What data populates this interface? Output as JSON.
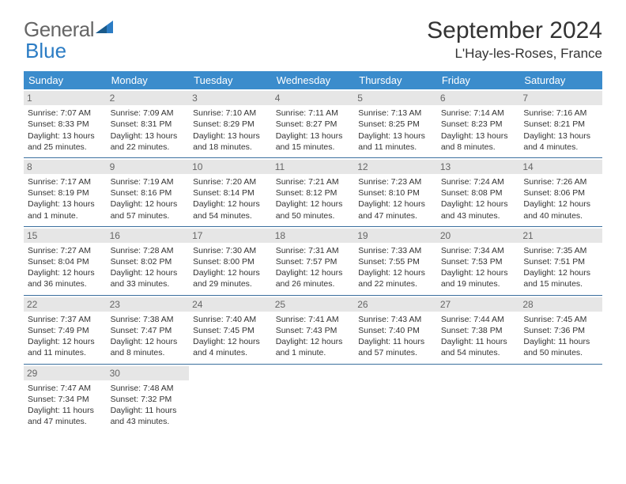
{
  "logo": {
    "text1": "General",
    "text2": "Blue"
  },
  "title": "September 2024",
  "location": "L'Hay-les-Roses, France",
  "header_color": "#3b8ccc",
  "divider_color": "#3b6f9e",
  "daynum_bg": "#e6e6e6",
  "day_headers": [
    "Sunday",
    "Monday",
    "Tuesday",
    "Wednesday",
    "Thursday",
    "Friday",
    "Saturday"
  ],
  "weeks": [
    [
      {
        "n": "1",
        "sr": "7:07 AM",
        "ss": "8:33 PM",
        "dl": "13 hours and 25 minutes."
      },
      {
        "n": "2",
        "sr": "7:09 AM",
        "ss": "8:31 PM",
        "dl": "13 hours and 22 minutes."
      },
      {
        "n": "3",
        "sr": "7:10 AM",
        "ss": "8:29 PM",
        "dl": "13 hours and 18 minutes."
      },
      {
        "n": "4",
        "sr": "7:11 AM",
        "ss": "8:27 PM",
        "dl": "13 hours and 15 minutes."
      },
      {
        "n": "5",
        "sr": "7:13 AM",
        "ss": "8:25 PM",
        "dl": "13 hours and 11 minutes."
      },
      {
        "n": "6",
        "sr": "7:14 AM",
        "ss": "8:23 PM",
        "dl": "13 hours and 8 minutes."
      },
      {
        "n": "7",
        "sr": "7:16 AM",
        "ss": "8:21 PM",
        "dl": "13 hours and 4 minutes."
      }
    ],
    [
      {
        "n": "8",
        "sr": "7:17 AM",
        "ss": "8:19 PM",
        "dl": "13 hours and 1 minute."
      },
      {
        "n": "9",
        "sr": "7:19 AM",
        "ss": "8:16 PM",
        "dl": "12 hours and 57 minutes."
      },
      {
        "n": "10",
        "sr": "7:20 AM",
        "ss": "8:14 PM",
        "dl": "12 hours and 54 minutes."
      },
      {
        "n": "11",
        "sr": "7:21 AM",
        "ss": "8:12 PM",
        "dl": "12 hours and 50 minutes."
      },
      {
        "n": "12",
        "sr": "7:23 AM",
        "ss": "8:10 PM",
        "dl": "12 hours and 47 minutes."
      },
      {
        "n": "13",
        "sr": "7:24 AM",
        "ss": "8:08 PM",
        "dl": "12 hours and 43 minutes."
      },
      {
        "n": "14",
        "sr": "7:26 AM",
        "ss": "8:06 PM",
        "dl": "12 hours and 40 minutes."
      }
    ],
    [
      {
        "n": "15",
        "sr": "7:27 AM",
        "ss": "8:04 PM",
        "dl": "12 hours and 36 minutes."
      },
      {
        "n": "16",
        "sr": "7:28 AM",
        "ss": "8:02 PM",
        "dl": "12 hours and 33 minutes."
      },
      {
        "n": "17",
        "sr": "7:30 AM",
        "ss": "8:00 PM",
        "dl": "12 hours and 29 minutes."
      },
      {
        "n": "18",
        "sr": "7:31 AM",
        "ss": "7:57 PM",
        "dl": "12 hours and 26 minutes."
      },
      {
        "n": "19",
        "sr": "7:33 AM",
        "ss": "7:55 PM",
        "dl": "12 hours and 22 minutes."
      },
      {
        "n": "20",
        "sr": "7:34 AM",
        "ss": "7:53 PM",
        "dl": "12 hours and 19 minutes."
      },
      {
        "n": "21",
        "sr": "7:35 AM",
        "ss": "7:51 PM",
        "dl": "12 hours and 15 minutes."
      }
    ],
    [
      {
        "n": "22",
        "sr": "7:37 AM",
        "ss": "7:49 PM",
        "dl": "12 hours and 11 minutes."
      },
      {
        "n": "23",
        "sr": "7:38 AM",
        "ss": "7:47 PM",
        "dl": "12 hours and 8 minutes."
      },
      {
        "n": "24",
        "sr": "7:40 AM",
        "ss": "7:45 PM",
        "dl": "12 hours and 4 minutes."
      },
      {
        "n": "25",
        "sr": "7:41 AM",
        "ss": "7:43 PM",
        "dl": "12 hours and 1 minute."
      },
      {
        "n": "26",
        "sr": "7:43 AM",
        "ss": "7:40 PM",
        "dl": "11 hours and 57 minutes."
      },
      {
        "n": "27",
        "sr": "7:44 AM",
        "ss": "7:38 PM",
        "dl": "11 hours and 54 minutes."
      },
      {
        "n": "28",
        "sr": "7:45 AM",
        "ss": "7:36 PM",
        "dl": "11 hours and 50 minutes."
      }
    ],
    [
      {
        "n": "29",
        "sr": "7:47 AM",
        "ss": "7:34 PM",
        "dl": "11 hours and 47 minutes."
      },
      {
        "n": "30",
        "sr": "7:48 AM",
        "ss": "7:32 PM",
        "dl": "11 hours and 43 minutes."
      },
      null,
      null,
      null,
      null,
      null
    ]
  ],
  "labels": {
    "sunrise": "Sunrise:",
    "sunset": "Sunset:",
    "daylight": "Daylight:"
  }
}
